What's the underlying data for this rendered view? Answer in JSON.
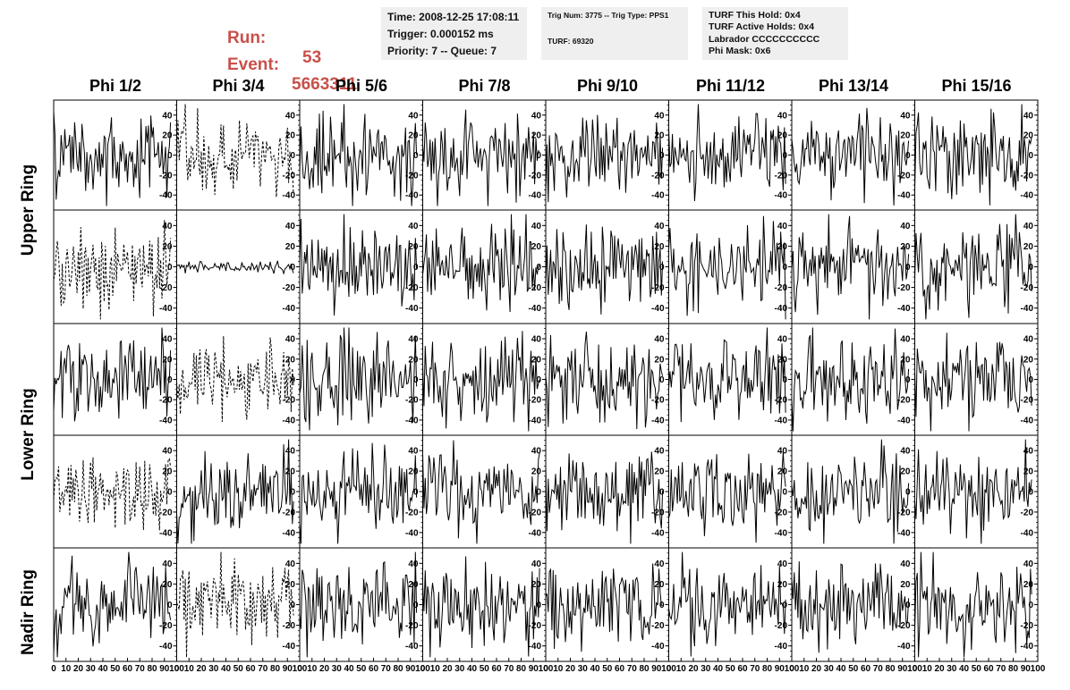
{
  "header": {
    "run_label": "Run:",
    "run_value": "53",
    "event_label": "Event:",
    "event_value": "5663311",
    "info1": {
      "time": "Time: 2008-12-25 17:08:11",
      "trigger": "Trigger: 0.000152 ms",
      "priority": "Priority: 7 -- Queue: 7"
    },
    "info2": {
      "trig": "Trig Num: 3775 -- Trig Type: PPS1",
      "turf": "TURF: 69320"
    },
    "info3": {
      "this_hold": "TURF This Hold: 0x4",
      "active_holds": "TURF Active Holds: 0x4",
      "labrador": "Labrador CCCCCCCCCC",
      "phi_mask": "Phi Mask: 0x6"
    }
  },
  "columns": [
    "Phi 1/2",
    "Phi 3/4",
    "Phi 5/6",
    "Phi 7/8",
    "Phi 9/10",
    "Phi 11/12",
    "Phi 13/14",
    "Phi 15/16"
  ],
  "rings": [
    {
      "label": "Upper Ring",
      "rows": [
        0,
        1
      ]
    },
    {
      "label": "Lower Ring",
      "rows": [
        2,
        3
      ]
    },
    {
      "label": "Nadir Ring",
      "rows": [
        4
      ]
    }
  ],
  "colors": {
    "trace": "#000000",
    "frame": "#000000",
    "run_text": "#c8504a",
    "info_bg": "#efefef"
  },
  "chart_data": {
    "type": "line",
    "grid": false,
    "xlim": [
      0,
      100
    ],
    "ylim": [
      -55,
      55
    ],
    "y_ticks": [
      "40",
      "20",
      "0",
      "-20",
      "-40"
    ],
    "x_ticks": [
      "0",
      "10",
      "20",
      "30",
      "40",
      "50",
      "60",
      "70",
      "80",
      "90",
      "100"
    ],
    "samples_per_trace": 96,
    "dashed_panels": [
      [
        0,
        1
      ],
      [
        1,
        0
      ],
      [
        2,
        1
      ],
      [
        3,
        0
      ],
      [
        4,
        1
      ]
    ],
    "quiet_panels": [
      [
        1,
        1
      ]
    ],
    "series_amplitude": {
      "normal": 22,
      "dashed": 20,
      "quiet": 3
    }
  }
}
